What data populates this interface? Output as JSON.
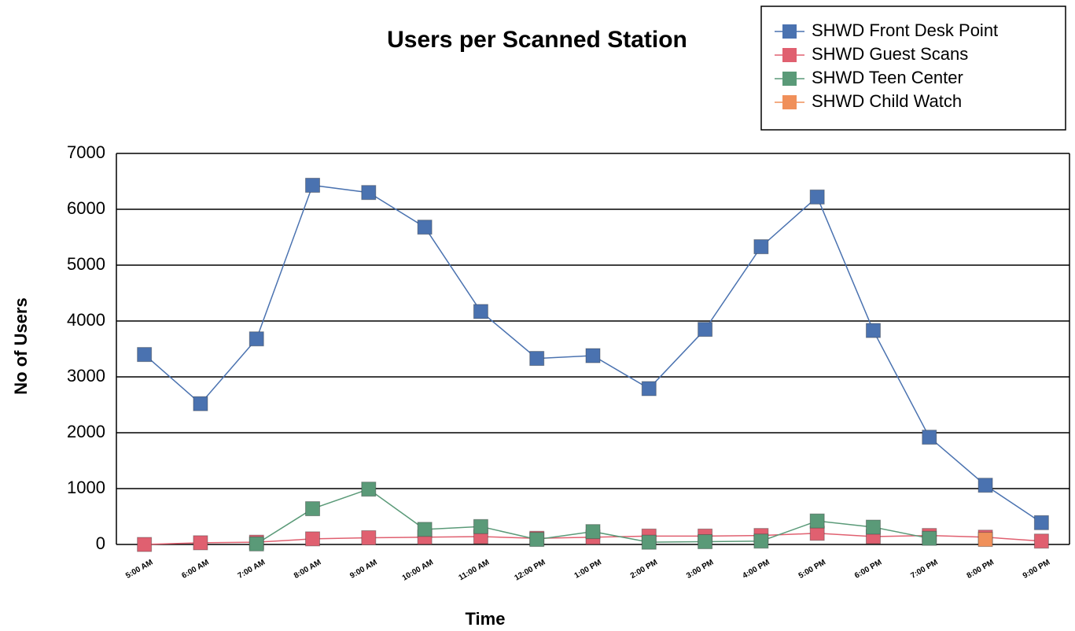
{
  "chart_data": {
    "type": "line",
    "title": "Users per Scanned Station",
    "xlabel": "Time",
    "ylabel": "No of Users",
    "categories": [
      "5:00 AM",
      "6:00 AM",
      "7:00 AM",
      "8:00 AM",
      "9:00 AM",
      "10:00 AM",
      "11:00 AM",
      "12:00 PM",
      "1:00 PM",
      "2:00 PM",
      "3:00 PM",
      "4:00 PM",
      "5:00 PM",
      "6:00 PM",
      "7:00 PM",
      "8:00 PM",
      "9:00 PM"
    ],
    "series": [
      {
        "name": "SHWD Front Desk Point",
        "color": "#4a72b0",
        "values": [
          3400,
          2520,
          3680,
          6430,
          6300,
          5680,
          4170,
          3330,
          3380,
          2790,
          3850,
          5330,
          6220,
          3830,
          1920,
          1060,
          390
        ]
      },
      {
        "name": "SHWD Guest Scans",
        "color": "#e06070",
        "values": [
          0,
          30,
          40,
          100,
          120,
          130,
          140,
          110,
          130,
          150,
          150,
          160,
          200,
          140,
          160,
          130,
          60
        ]
      },
      {
        "name": "SHWD Teen Center",
        "color": "#5a9a78",
        "values": [
          null,
          null,
          10,
          640,
          990,
          270,
          320,
          90,
          230,
          40,
          50,
          60,
          420,
          310,
          110,
          null,
          null
        ]
      },
      {
        "name": "SHWD Child Watch",
        "color": "#f0905a",
        "values": [
          null,
          null,
          null,
          null,
          null,
          null,
          null,
          null,
          null,
          null,
          null,
          null,
          null,
          null,
          null,
          90,
          null
        ]
      }
    ],
    "ylim": [
      0,
      7000
    ],
    "yticks": [
      0,
      1000,
      2000,
      3000,
      4000,
      5000,
      6000,
      7000
    ],
    "grid": true,
    "legend": "upper right"
  }
}
